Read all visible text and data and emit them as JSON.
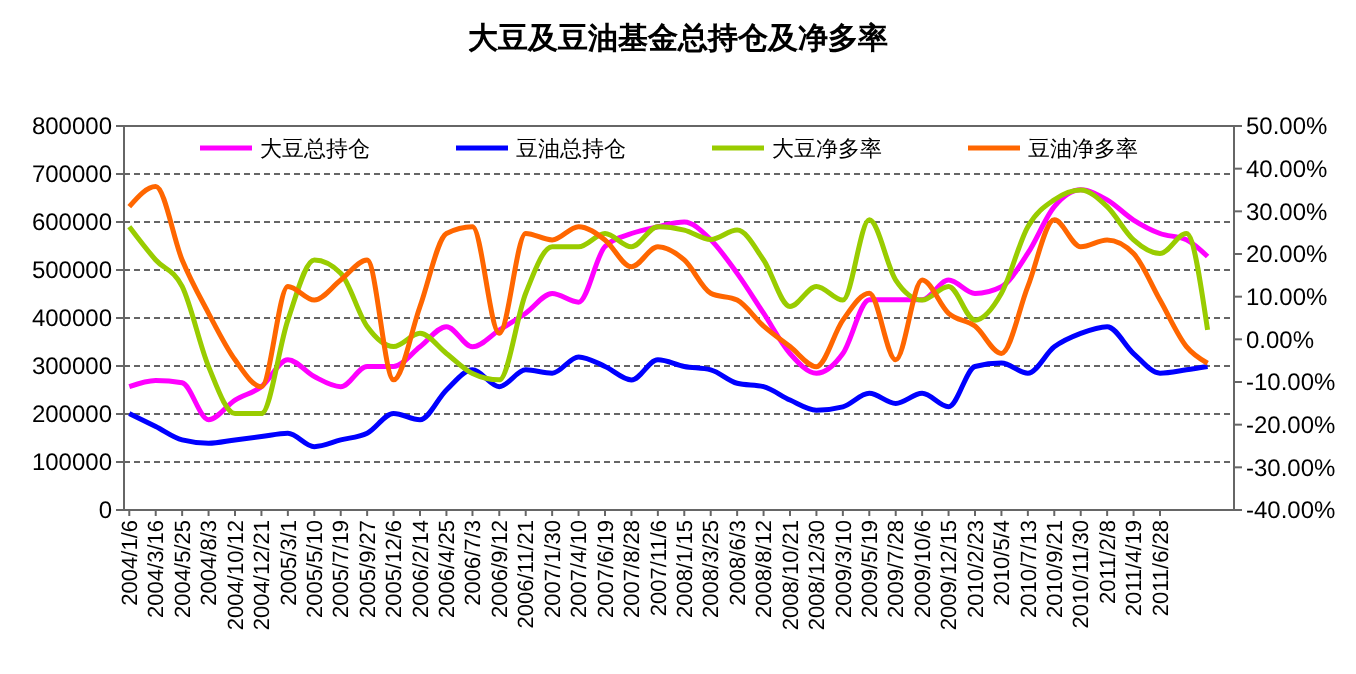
{
  "chart_data": {
    "type": "line",
    "title": "大豆及豆油基金总持仓及净多率",
    "x": [
      "2004-01-06",
      "2004-03-16",
      "2004-05-25",
      "2004-08-03",
      "2004-10-12",
      "2004-12-21",
      "2005-03-01",
      "2005-05-10",
      "2005-07-19",
      "2005-09-27",
      "2005-12-06",
      "2006-02-14",
      "2006-04-25",
      "2006-07-03",
      "2006-09-12",
      "2006-11-21",
      "2007-01-30",
      "2007-04-10",
      "2007-06-19",
      "2007-08-28",
      "2007-11-06",
      "2008-01-15",
      "2008-03-25",
      "2008-06-03",
      "2008-08-12",
      "2008-10-21",
      "2008-12-30",
      "2009-03-10",
      "2009-05-19",
      "2009-07-28",
      "2009-10-06",
      "2009-12-15",
      "2010-02-23",
      "2010-05-04",
      "2010-07-13",
      "2010-09-21",
      "2010-11-30",
      "2011-02-08",
      "2011-04-19",
      "2011-06-28",
      "2011-09-06",
      "2011-11-01"
    ],
    "series": [
      {
        "name": "大豆总持仓",
        "color": "#ff00ff",
        "values": [
          257000,
          270000,
          265000,
          188000,
          229000,
          257000,
          313000,
          278000,
          257000,
          299000,
          299000,
          340000,
          382000,
          340000,
          375000,
          410000,
          451000,
          433000,
          549000,
          576000,
          590000,
          600000,
          563000,
          493000,
          410000,
          326000,
          285000,
          326000,
          438000,
          438000,
          438000,
          479000,
          451000,
          465000,
          535000,
          632000,
          667000,
          646000,
          604000,
          576000,
          563000,
          528000
        ]
      },
      {
        "name": "豆油总持仓",
        "color": "#0000ff",
        "values": [
          201000,
          174000,
          146000,
          139000,
          146000,
          153000,
          160000,
          132000,
          146000,
          160000,
          201000,
          188000,
          250000,
          292000,
          257000,
          292000,
          285000,
          319000,
          299000,
          271000,
          313000,
          299000,
          292000,
          264000,
          257000,
          229000,
          208000,
          215000,
          243000,
          222000,
          243000,
          215000,
          299000,
          306000,
          285000,
          340000,
          368000,
          382000,
          326000,
          285000,
          292000,
          299000
        ]
      },
      {
        "name": "大豆净多率",
        "color": "#99cc00",
        "axis": "y2",
        "values": [
          26.4,
          18.6,
          12.4,
          -6.4,
          -17.4,
          -17.4,
          4.5,
          18.6,
          15.5,
          3.0,
          -1.7,
          1.4,
          -3.3,
          -8.0,
          -9.5,
          10.8,
          21.7,
          21.7,
          24.8,
          21.7,
          26.4,
          25.6,
          23.4,
          25.6,
          18.6,
          7.7,
          12.4,
          9.2,
          28.0,
          13.9,
          9.2,
          12.4,
          4.5,
          10.8,
          26.4,
          32.7,
          35.0,
          31.1,
          23.3,
          20.1,
          24.8,
          2.2
        ]
      },
      {
        "name": "豆油净多率",
        "color": "#ff6600",
        "axis": "y2",
        "values": [
          31.1,
          35.8,
          18.6,
          6.1,
          -4.8,
          -11.1,
          12.4,
          9.2,
          13.9,
          18.6,
          -9.5,
          7.7,
          24.8,
          26.4,
          1.4,
          24.8,
          23.3,
          26.4,
          23.3,
          17.0,
          21.7,
          18.6,
          10.8,
          9.2,
          3.1,
          -1.7,
          -6.4,
          4.5,
          10.8,
          -4.8,
          13.9,
          6.1,
          3.1,
          -3.3,
          12.4,
          28.0,
          21.7,
          23.3,
          20.1,
          9.2,
          -1.7,
          -5.6
        ]
      }
    ],
    "xlim": [
      "2003-12-23",
      "2012-01-10"
    ],
    "xticks": [
      {
        "value": "2004-01-06",
        "label": "2004/1/6"
      },
      {
        "value": "2004-03-16",
        "label": "2004/3/16"
      },
      {
        "value": "2004-05-25",
        "label": "2004/5/25"
      },
      {
        "value": "2004-08-03",
        "label": "2004/8/3"
      },
      {
        "value": "2004-10-12",
        "label": "2004/10/12"
      },
      {
        "value": "2004-12-21",
        "label": "2004/12/21"
      },
      {
        "value": "2005-03-01",
        "label": "2005/3/1"
      },
      {
        "value": "2005-05-10",
        "label": "2005/5/10"
      },
      {
        "value": "2005-07-19",
        "label": "2005/7/19"
      },
      {
        "value": "2005-09-27",
        "label": "2005/9/27"
      },
      {
        "value": "2005-12-06",
        "label": "2005/12/6"
      },
      {
        "value": "2006-02-14",
        "label": "2006/2/14"
      },
      {
        "value": "2006-04-25",
        "label": "2006/4/25"
      },
      {
        "value": "2006-07-03",
        "label": "2006/7/3"
      },
      {
        "value": "2006-09-12",
        "label": "2006/9/12"
      },
      {
        "value": "2006-11-21",
        "label": "2006/11/21"
      },
      {
        "value": "2007-01-30",
        "label": "2007/1/30"
      },
      {
        "value": "2007-04-10",
        "label": "2007/4/10"
      },
      {
        "value": "2007-06-19",
        "label": "2007/6/19"
      },
      {
        "value": "2007-08-28",
        "label": "2007/8/28"
      },
      {
        "value": "2007-11-06",
        "label": "2007/11/6"
      },
      {
        "value": "2008-01-15",
        "label": "2008/1/15"
      },
      {
        "value": "2008-03-25",
        "label": "2008/3/25"
      },
      {
        "value": "2008-06-03",
        "label": "2008/6/3"
      },
      {
        "value": "2008-08-12",
        "label": "2008/8/12"
      },
      {
        "value": "2008-10-21",
        "label": "2008/10/21"
      },
      {
        "value": "2008-12-30",
        "label": "2008/12/30"
      },
      {
        "value": "2009-03-10",
        "label": "2009/3/10"
      },
      {
        "value": "2009-05-19",
        "label": "2009/5/19"
      },
      {
        "value": "2009-07-28",
        "label": "2009/7/28"
      },
      {
        "value": "2009-10-06",
        "label": "2009/10/6"
      },
      {
        "value": "2009-12-15",
        "label": "2009/12/15"
      },
      {
        "value": "2010-02-23",
        "label": "2010/2/23"
      },
      {
        "value": "2010-05-04",
        "label": "2010/5/4"
      },
      {
        "value": "2010-07-13",
        "label": "2010/7/13"
      },
      {
        "value": "2010-09-21",
        "label": "2010/9/21"
      },
      {
        "value": "2010-11-30",
        "label": "2010/11/30"
      },
      {
        "value": "2011-02-08",
        "label": "2011/2/8"
      },
      {
        "value": "2011-04-19",
        "label": "2011/4/19"
      },
      {
        "value": "2011-06-28",
        "label": "2011/6/28"
      }
    ],
    "ylim": [
      0,
      800000
    ],
    "yticks": [
      0,
      100000,
      200000,
      300000,
      400000,
      500000,
      600000,
      700000,
      800000
    ],
    "y2lim": [
      -40,
      50
    ],
    "y2ticks": [
      {
        "value": -40,
        "label": "-40.00%"
      },
      {
        "value": -30,
        "label": "-30.00%"
      },
      {
        "value": -20,
        "label": "-20.00%"
      },
      {
        "value": -10,
        "label": "-10.00%"
      },
      {
        "value": 0,
        "label": "0.00%"
      },
      {
        "value": 10,
        "label": "10.00%"
      },
      {
        "value": 20,
        "label": "20.00%"
      },
      {
        "value": 30,
        "label": "30.00%"
      },
      {
        "value": 40,
        "label": "40.00%"
      },
      {
        "value": 50,
        "label": "50.00%"
      }
    ],
    "grid": "y",
    "legend": "top",
    "marker": "none",
    "line_style": "solid"
  }
}
